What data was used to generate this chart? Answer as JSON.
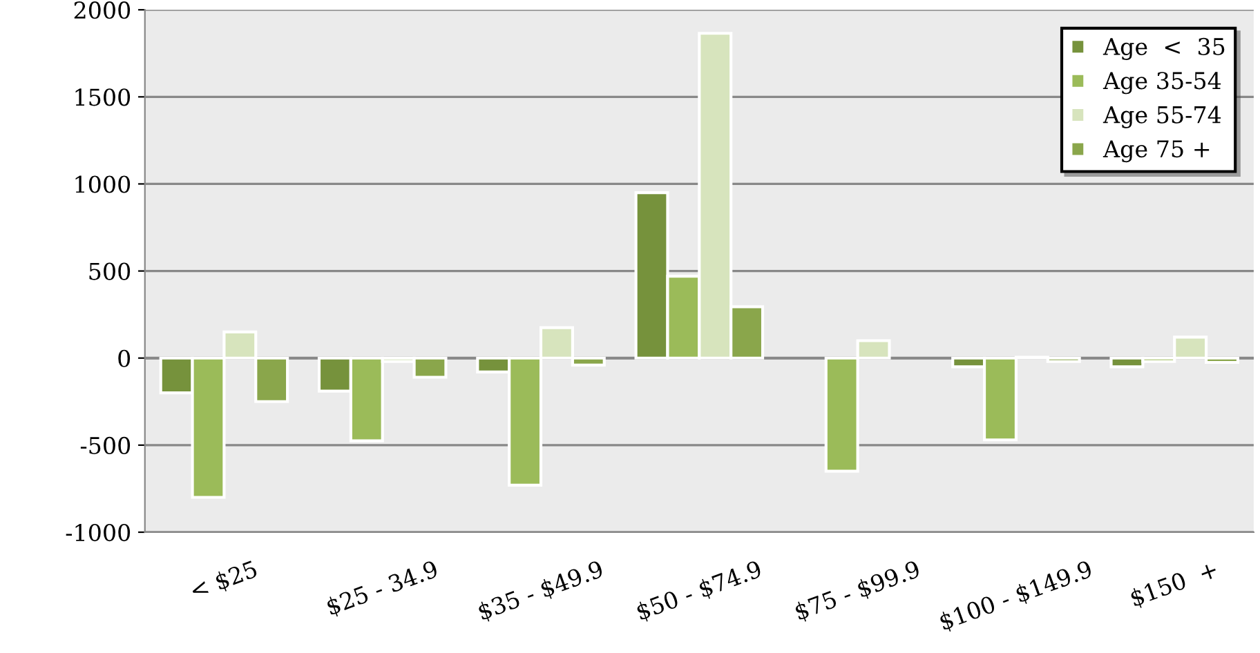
{
  "chart_data": {
    "type": "bar",
    "categories": [
      "< $25",
      "$25 - 34.9",
      "$35 - $49.9",
      "$50 - $74.9",
      "$75 - $99.9",
      "$100 - $149.9",
      "$150  +"
    ],
    "series": [
      {
        "name": "Age  <  35",
        "color": "#76923c",
        "values": [
          -200,
          -190,
          -80,
          950,
          null,
          -50,
          -50
        ]
      },
      {
        "name": "Age 35-54",
        "color": "#9bbb59",
        "values": [
          -800,
          -475,
          -730,
          470,
          -650,
          -470,
          -20
        ]
      },
      {
        "name": "Age 55-74",
        "color": "#d7e4bd",
        "values": [
          150,
          -20,
          175,
          1865,
          100,
          5,
          120
        ]
      },
      {
        "name": "Age 75 +",
        "color": "#8aa64b",
        "values": [
          -250,
          -110,
          -40,
          295,
          null,
          -20,
          -25
        ]
      }
    ],
    "ylim": [
      -1000,
      2000
    ],
    "yticks": [
      -1000,
      -500,
      0,
      500,
      1000,
      1500,
      2000
    ],
    "grid": "y",
    "legend": "top right"
  }
}
